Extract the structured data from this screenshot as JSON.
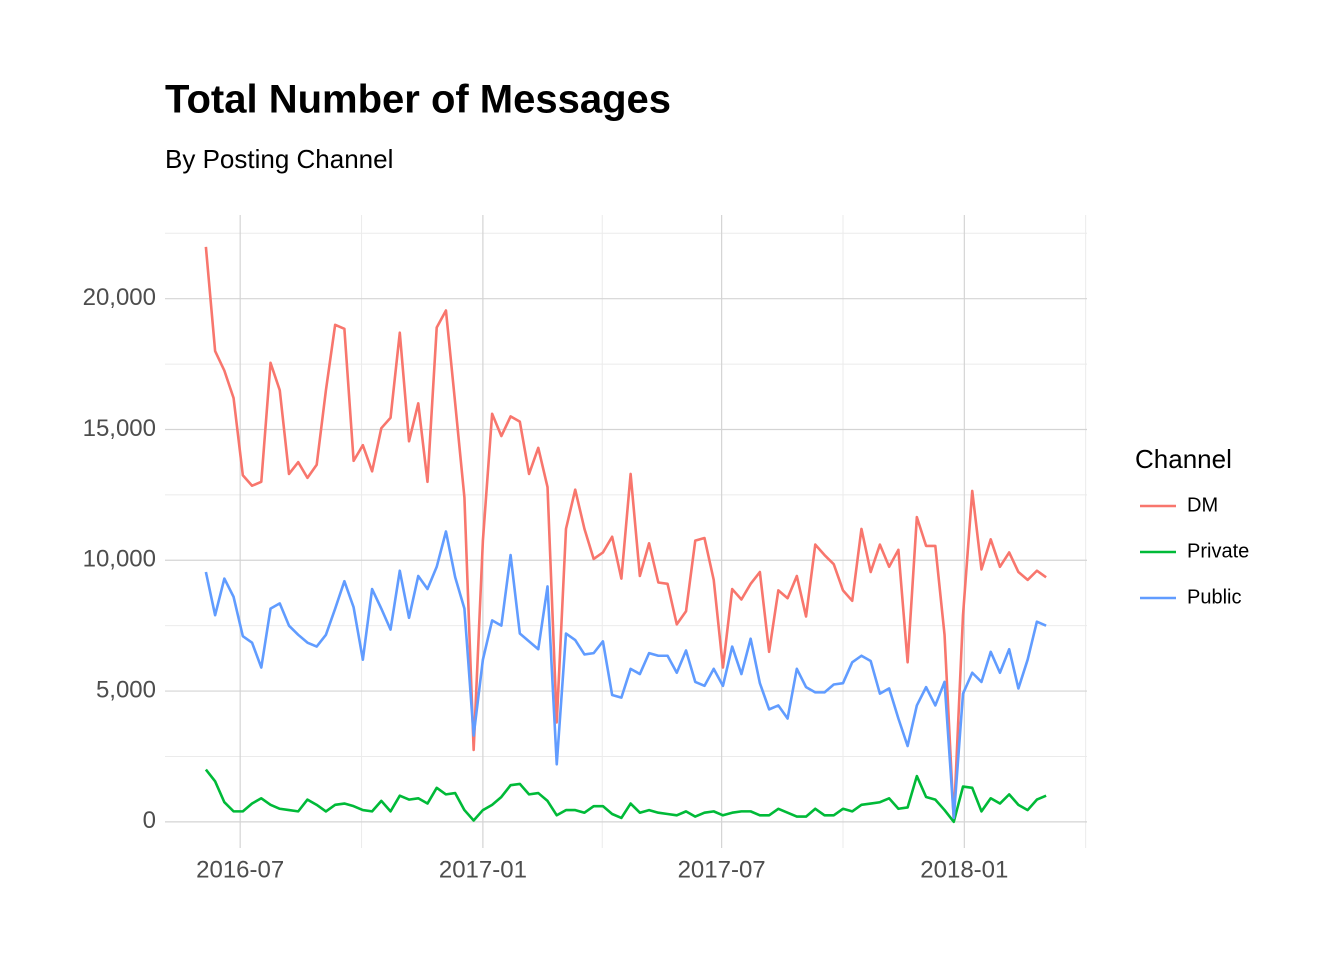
{
  "chart_data": {
    "type": "line",
    "title": "Total Number of Messages",
    "subtitle": "By Posting Channel",
    "legend_title": "Channel",
    "legend_position": "right",
    "grid": true,
    "x": [
      "2016-06-05",
      "2016-06-12",
      "2016-06-19",
      "2016-06-26",
      "2016-07-03",
      "2016-07-10",
      "2016-07-17",
      "2016-07-24",
      "2016-07-31",
      "2016-08-07",
      "2016-08-14",
      "2016-08-21",
      "2016-08-28",
      "2016-09-04",
      "2016-09-11",
      "2016-09-18",
      "2016-09-25",
      "2016-10-02",
      "2016-10-09",
      "2016-10-16",
      "2016-10-23",
      "2016-10-30",
      "2016-11-06",
      "2016-11-13",
      "2016-11-20",
      "2016-11-27",
      "2016-12-04",
      "2016-12-11",
      "2016-12-18",
      "2016-12-25",
      "2017-01-01",
      "2017-01-08",
      "2017-01-15",
      "2017-01-22",
      "2017-01-29",
      "2017-02-05",
      "2017-02-12",
      "2017-02-19",
      "2017-02-26",
      "2017-03-05",
      "2017-03-12",
      "2017-03-19",
      "2017-03-26",
      "2017-04-02",
      "2017-04-09",
      "2017-04-16",
      "2017-04-23",
      "2017-04-30",
      "2017-05-07",
      "2017-05-14",
      "2017-05-21",
      "2017-05-28",
      "2017-06-04",
      "2017-06-11",
      "2017-06-18",
      "2017-06-25",
      "2017-07-02",
      "2017-07-09",
      "2017-07-16",
      "2017-07-23",
      "2017-07-30",
      "2017-08-06",
      "2017-08-13",
      "2017-08-20",
      "2017-08-27",
      "2017-09-03",
      "2017-09-10",
      "2017-09-17",
      "2017-09-24",
      "2017-10-01",
      "2017-10-08",
      "2017-10-15",
      "2017-10-22",
      "2017-10-29",
      "2017-11-05",
      "2017-11-12",
      "2017-11-19",
      "2017-11-26",
      "2017-12-03",
      "2017-12-10",
      "2017-12-17",
      "2017-12-24",
      "2017-12-31",
      "2018-01-07",
      "2018-01-14",
      "2018-01-21",
      "2018-01-28",
      "2018-02-04",
      "2018-02-11",
      "2018-02-18",
      "2018-02-25",
      "2018-03-04"
    ],
    "xlim": [
      "2016-05-05",
      "2018-04-04"
    ],
    "xticks": [
      {
        "value": "2016-07-01",
        "label": "2016-07"
      },
      {
        "value": "2017-01-01",
        "label": "2017-01"
      },
      {
        "value": "2017-07-01",
        "label": "2017-07"
      },
      {
        "value": "2018-01-01",
        "label": "2018-01"
      }
    ],
    "ylim": [
      -1000,
      23200
    ],
    "yticks": [
      0,
      {
        "value": 5000,
        "label": "5,000"
      },
      {
        "value": 10000,
        "label": "10,000"
      },
      {
        "value": 15000,
        "label": "15,000"
      },
      {
        "value": 20000,
        "label": "20,000"
      }
    ],
    "series": [
      {
        "name": "DM",
        "color": "#F8766D",
        "values": [
          21980,
          18000,
          17250,
          16200,
          13250,
          12850,
          13000,
          17550,
          16500,
          13300,
          13750,
          13150,
          13650,
          16500,
          19000,
          18850,
          13800,
          14400,
          13400,
          15050,
          15450,
          18700,
          14550,
          16000,
          13000,
          18900,
          19550,
          16000,
          12400,
          2750,
          10750,
          15600,
          14750,
          15500,
          15300,
          13300,
          14300,
          12800,
          3800,
          11200,
          12700,
          11200,
          10050,
          10300,
          10900,
          9300,
          13300,
          9400,
          10650,
          9150,
          9100,
          7550,
          8050,
          10750,
          10850,
          9250,
          5900,
          8900,
          8500,
          9100,
          9550,
          6500,
          8850,
          8550,
          9400,
          7850,
          10600,
          10200,
          9850,
          8850,
          8450,
          11200,
          9550,
          10600,
          9750,
          10400,
          6100,
          11650,
          10550,
          10550,
          7150,
          50,
          7900,
          12650,
          9650,
          10800,
          9750,
          10300,
          9550,
          9250,
          9600,
          9350
        ]
      },
      {
        "name": "Private",
        "color": "#00BA38",
        "values": [
          2000,
          1550,
          750,
          400,
          400,
          700,
          900,
          650,
          500,
          450,
          400,
          850,
          650,
          400,
          650,
          700,
          600,
          450,
          400,
          800,
          400,
          1000,
          850,
          900,
          700,
          1300,
          1050,
          1100,
          450,
          50,
          450,
          650,
          950,
          1400,
          1450,
          1050,
          1100,
          800,
          250,
          450,
          450,
          350,
          600,
          600,
          300,
          150,
          700,
          350,
          450,
          350,
          300,
          250,
          400,
          200,
          350,
          400,
          250,
          350,
          400,
          400,
          250,
          250,
          500,
          350,
          200,
          200,
          500,
          250,
          250,
          500,
          400,
          650,
          700,
          750,
          900,
          500,
          550,
          1750,
          950,
          850,
          450,
          0,
          1350,
          1300,
          400,
          900,
          700,
          1050,
          650,
          450,
          850,
          1000
        ]
      },
      {
        "name": "Public",
        "color": "#619CFF",
        "values": [
          9550,
          7900,
          9300,
          8600,
          7100,
          6850,
          5900,
          8150,
          8350,
          7500,
          7150,
          6850,
          6700,
          7150,
          8150,
          9200,
          8200,
          6200,
          8900,
          8150,
          7350,
          9600,
          7800,
          9400,
          8900,
          9750,
          11100,
          9350,
          8150,
          3300,
          6200,
          7700,
          7500,
          10200,
          7200,
          6900,
          6600,
          9000,
          2200,
          7200,
          6950,
          6400,
          6450,
          6900,
          4850,
          4750,
          5850,
          5650,
          6450,
          6350,
          6350,
          5700,
          6550,
          5350,
          5200,
          5850,
          5200,
          6700,
          5650,
          7000,
          5300,
          4300,
          4450,
          3950,
          5850,
          5150,
          4950,
          4950,
          5250,
          5300,
          6100,
          6350,
          6150,
          4900,
          5100,
          3950,
          2900,
          4450,
          5150,
          4450,
          5350,
          150,
          4900,
          5700,
          5350,
          6500,
          5700,
          6600,
          5100,
          6200,
          7650,
          7500
        ]
      }
    ]
  }
}
